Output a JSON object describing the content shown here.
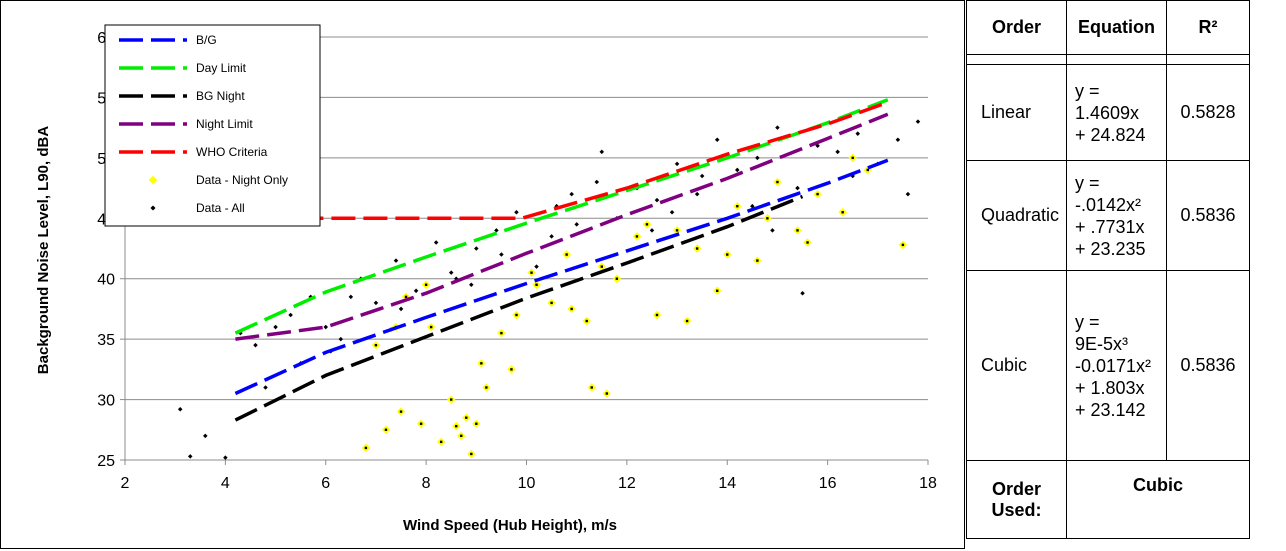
{
  "chart_data": {
    "type": "scatter",
    "title": "",
    "xlabel": "Wind Speed (Hub Height), m/s",
    "ylabel": "Background Noise Level, L90, dBA",
    "xlim": [
      2,
      18
    ],
    "ylim": [
      25,
      60
    ],
    "x_ticks": [
      "2",
      "4",
      "6",
      "8",
      "10",
      "12",
      "14",
      "16",
      "18"
    ],
    "y_ticks": [
      "25",
      "30",
      "35",
      "40",
      "45",
      "50",
      "55",
      "60"
    ],
    "grid": "horizontal",
    "legend_position": "top-left",
    "series": [
      {
        "name": "B/G",
        "kind": "line",
        "style": "dashed",
        "color": "#0000ff",
        "x": [
          4.2,
          6,
          8,
          10,
          12,
          14,
          16,
          17.2
        ],
        "y": [
          30.5,
          33.9,
          36.8,
          39.6,
          42.3,
          45.0,
          47.9,
          49.8
        ]
      },
      {
        "name": "Day Limit",
        "kind": "line",
        "style": "dashed",
        "color": "#00ee00",
        "x": [
          4.2,
          6,
          8,
          10,
          12,
          14,
          16,
          17.2
        ],
        "y": [
          35.5,
          38.9,
          41.8,
          44.6,
          47.3,
          50.0,
          52.9,
          54.8
        ]
      },
      {
        "name": "BG Night",
        "kind": "line",
        "style": "dashed",
        "color": "#000000",
        "x": [
          4.2,
          6,
          8,
          10,
          12,
          14,
          15.5
        ],
        "y": [
          28.3,
          32.0,
          35.2,
          38.4,
          41.3,
          44.3,
          46.8
        ]
      },
      {
        "name": "Night Limit",
        "kind": "line",
        "style": "dashed",
        "color": "#800080",
        "x": [
          4.2,
          6,
          8,
          10,
          12,
          14,
          16,
          17.2
        ],
        "y": [
          35.0,
          36.0,
          38.8,
          42.1,
          45.3,
          48.3,
          51.6,
          53.6
        ]
      },
      {
        "name": "WHO Criteria",
        "kind": "line",
        "style": "dashed",
        "color": "#ff0000",
        "x": [
          4.2,
          9.9,
          12,
          14,
          16,
          17.2
        ],
        "y": [
          45.0,
          45.0,
          47.5,
          50.3,
          52.8,
          54.6
        ]
      },
      {
        "name": "Data - Night Only",
        "kind": "scatter",
        "color": "#ffff00",
        "x": [
          6.8,
          7.2,
          7.5,
          7.9,
          8.3,
          8.6,
          8.9,
          9.2,
          9.5,
          9.8,
          10.1,
          10.5,
          10.8,
          11.2,
          11.5,
          11.8,
          12.2,
          12.6,
          13.0,
          13.4,
          13.8,
          14.2,
          14.6,
          15.0,
          15.4,
          15.8,
          16.3,
          16.8,
          7.0,
          7.6,
          8.1,
          8.5,
          8.8,
          9.1,
          9.7,
          10.2,
          10.9,
          11.6,
          12.4,
          13.2,
          14.0,
          14.8,
          15.6,
          16.5,
          17.5,
          8.7,
          9.0,
          7.4,
          8.0,
          11.3
        ],
        "y": [
          26.0,
          27.5,
          29.0,
          28.0,
          26.5,
          27.8,
          25.5,
          31.0,
          35.5,
          37.0,
          40.5,
          38.0,
          42.0,
          36.5,
          41.0,
          40.0,
          43.5,
          37.0,
          44.0,
          42.5,
          39.0,
          46.0,
          41.5,
          48.0,
          44.0,
          47.0,
          45.5,
          49.0,
          34.5,
          38.5,
          36.0,
          30.0,
          28.5,
          33.0,
          32.5,
          39.5,
          37.5,
          30.5,
          44.5,
          36.5,
          42.0,
          45.0,
          43.0,
          50.0,
          42.8,
          27.0,
          28.0,
          36.0,
          39.5,
          31.0
        ]
      },
      {
        "name": "Data - All",
        "kind": "scatter",
        "color": "#000000",
        "x": [
          3.1,
          3.3,
          3.6,
          4.0,
          4.3,
          4.6,
          5.0,
          5.3,
          5.7,
          6.0,
          6.3,
          6.7,
          7.0,
          7.4,
          7.8,
          8.2,
          8.6,
          9.0,
          9.4,
          9.8,
          10.2,
          10.6,
          11.0,
          11.4,
          11.8,
          12.2,
          12.6,
          13.0,
          13.4,
          13.8,
          14.2,
          14.6,
          15.0,
          15.4,
          15.8,
          16.2,
          16.6,
          17.0,
          17.4,
          17.8,
          5.5,
          6.5,
          7.5,
          8.5,
          9.5,
          10.5,
          11.5,
          12.5,
          13.5,
          14.5,
          15.5,
          16.5,
          17.6,
          4.8,
          6.1,
          7.3,
          8.9,
          10.9,
          12.9,
          14.9
        ],
        "y": [
          29.2,
          25.3,
          27.0,
          25.2,
          35.5,
          34.5,
          36.0,
          37.0,
          38.5,
          36.0,
          35.0,
          40.0,
          38.0,
          41.5,
          39.0,
          43.0,
          40.0,
          42.5,
          44.0,
          45.5,
          41.0,
          46.0,
          44.5,
          48.0,
          45.0,
          47.5,
          46.5,
          49.5,
          47.0,
          51.5,
          49.0,
          50.0,
          52.5,
          47.5,
          51.0,
          50.5,
          52.0,
          49.5,
          51.5,
          53.0,
          33.0,
          38.5,
          37.5,
          40.5,
          42.0,
          43.5,
          50.5,
          44.0,
          48.5,
          46.0,
          38.8,
          48.5,
          47.0,
          31.0,
          34.0,
          35.8,
          39.5,
          47.0,
          45.5,
          44.0
        ]
      }
    ]
  },
  "table": {
    "headers": [
      "Order",
      "Equation",
      "R²"
    ],
    "rows": [
      {
        "order": "Linear",
        "equation": [
          "y =",
          "1.4609x",
          "+ 24.824"
        ],
        "r2": "0.5828"
      },
      {
        "order": "Quadratic",
        "equation": [
          "y =",
          "-.0142x²",
          "+ .7731x",
          "+ 23.235"
        ],
        "r2": "0.5836"
      },
      {
        "order": "Cubic",
        "equation": [
          "y =",
          "9E-5x³",
          "-0.0171x²",
          "+ 1.803x",
          "+ 23.142"
        ],
        "r2": "0.5836"
      }
    ],
    "used_label": "Order Used:",
    "used_value": "Cubic"
  }
}
